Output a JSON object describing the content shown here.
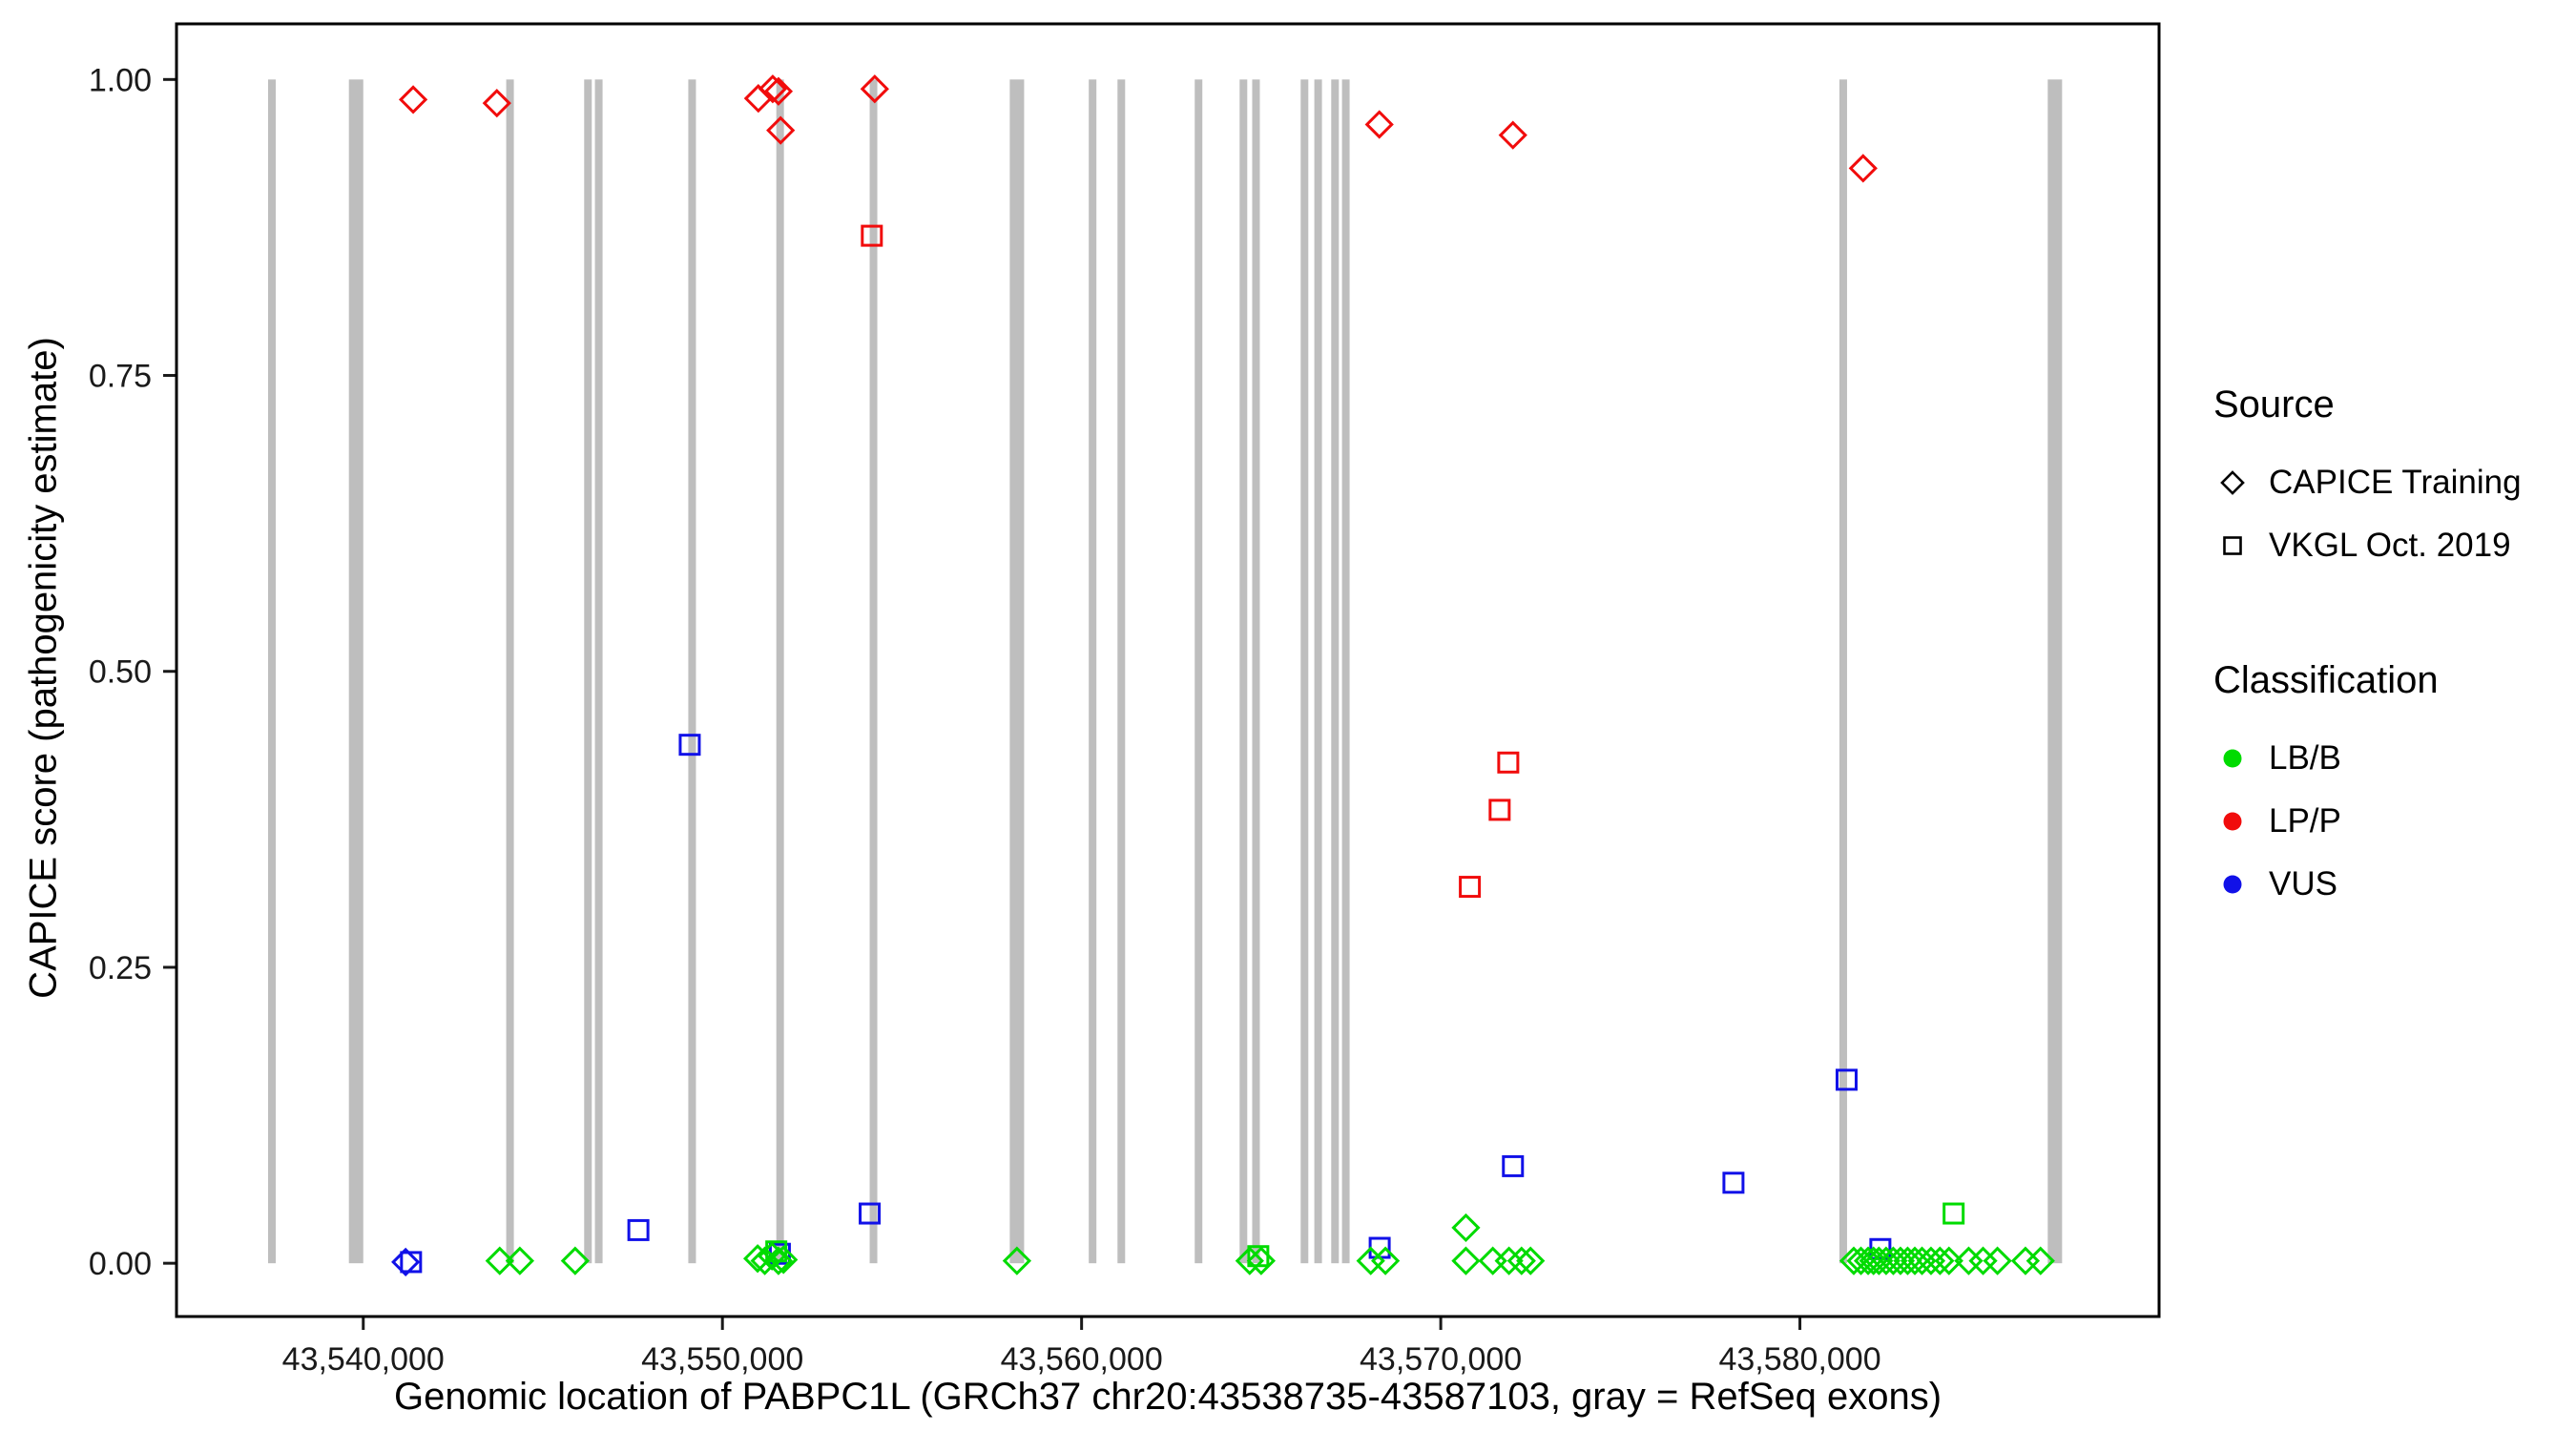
{
  "colors": {
    "exon": "#BEBEBE",
    "border": "#000000",
    "tick": "#1A1A1A",
    "axis_text": "#1A1A1A",
    "classes": {
      "LB/B": "#00DB00",
      "LP/P": "#F10C0C",
      "VUS": "#1111E8"
    }
  },
  "legend": {
    "source_title": "Source",
    "source_items": [
      {
        "label": "CAPICE Training",
        "shape": "diamond"
      },
      {
        "label": "VKGL Oct. 2019",
        "shape": "square"
      }
    ],
    "class_title": "Classification",
    "class_items": [
      {
        "label": "LB/B"
      },
      {
        "label": "LP/P"
      },
      {
        "label": "VUS"
      }
    ]
  },
  "chart_data": {
    "type": "scatter",
    "title": "",
    "xlabel": "Genomic location of PABPC1L (GRCh37 chr20:43538735-43587103, gray = RefSeq exons)",
    "ylabel": "CAPICE score (pathogenicity estimate)",
    "xlim": [
      43534800,
      43590000
    ],
    "ylim": [
      -0.045,
      1.047
    ],
    "grid": false,
    "legend_position": "right",
    "x_ticks": [
      {
        "value": 43540000,
        "label": "43,540,000"
      },
      {
        "value": 43550000,
        "label": "43,550,000"
      },
      {
        "value": 43560000,
        "label": "43,560,000"
      },
      {
        "value": 43570000,
        "label": "43,570,000"
      },
      {
        "value": 43580000,
        "label": "43,580,000"
      }
    ],
    "y_ticks": [
      {
        "value": 0.0,
        "label": "0.00"
      },
      {
        "value": 0.25,
        "label": "0.25"
      },
      {
        "value": 0.5,
        "label": "0.50"
      },
      {
        "value": 0.75,
        "label": "0.75"
      },
      {
        "value": 1.0,
        "label": "1.00"
      }
    ],
    "exons": [
      [
        43537350,
        43537550
      ],
      [
        43539600,
        43540000
      ],
      [
        43543980,
        43544150
      ],
      [
        43546150,
        43546350
      ],
      [
        43546450,
        43546650
      ],
      [
        43549050,
        43549250
      ],
      [
        43551500,
        43551700
      ],
      [
        43554100,
        43554300
      ],
      [
        43558000,
        43558400
      ],
      [
        43560200,
        43560400
      ],
      [
        43561000,
        43561200
      ],
      [
        43563150,
        43563350
      ],
      [
        43564400,
        43564560
      ],
      [
        43564750,
        43564900
      ],
      [
        43566100,
        43566260
      ],
      [
        43566480,
        43566640
      ],
      [
        43566950,
        43567110
      ],
      [
        43567250,
        43567410
      ],
      [
        43581100,
        43581300
      ],
      [
        43586900,
        43587300
      ]
    ],
    "points": [
      {
        "x": 43541390,
        "y": 0.983,
        "shape": "diamond",
        "cls": "LP/P",
        "source": "CAPICE Training"
      },
      {
        "x": 43543720,
        "y": 0.98,
        "shape": "diamond",
        "cls": "LP/P",
        "source": "CAPICE Training"
      },
      {
        "x": 43551000,
        "y": 0.984,
        "shape": "diamond",
        "cls": "LP/P",
        "source": "CAPICE Training"
      },
      {
        "x": 43551400,
        "y": 0.992,
        "shape": "diamond",
        "cls": "LP/P",
        "source": "CAPICE Training"
      },
      {
        "x": 43551560,
        "y": 0.99,
        "shape": "diamond",
        "cls": "LP/P",
        "source": "CAPICE Training"
      },
      {
        "x": 43551620,
        "y": 0.957,
        "shape": "diamond",
        "cls": "LP/P",
        "source": "CAPICE Training"
      },
      {
        "x": 43554240,
        "y": 0.992,
        "shape": "diamond",
        "cls": "LP/P",
        "source": "CAPICE Training"
      },
      {
        "x": 43568290,
        "y": 0.962,
        "shape": "diamond",
        "cls": "LP/P",
        "source": "CAPICE Training"
      },
      {
        "x": 43572010,
        "y": 0.953,
        "shape": "diamond",
        "cls": "LP/P",
        "source": "CAPICE Training"
      },
      {
        "x": 43581760,
        "y": 0.925,
        "shape": "diamond",
        "cls": "LP/P",
        "source": "CAPICE Training"
      },
      {
        "x": 43554160,
        "y": 0.868,
        "shape": "square",
        "cls": "LP/P",
        "source": "VKGL Oct. 2019"
      },
      {
        "x": 43570810,
        "y": 0.318,
        "shape": "square",
        "cls": "LP/P",
        "source": "VKGL Oct. 2019"
      },
      {
        "x": 43571640,
        "y": 0.383,
        "shape": "square",
        "cls": "LP/P",
        "source": "VKGL Oct. 2019"
      },
      {
        "x": 43571880,
        "y": 0.423,
        "shape": "square",
        "cls": "LP/P",
        "source": "VKGL Oct. 2019"
      },
      {
        "x": 43549090,
        "y": 0.438,
        "shape": "square",
        "cls": "VUS",
        "source": "VKGL Oct. 2019"
      },
      {
        "x": 43547660,
        "y": 0.028,
        "shape": "square",
        "cls": "VUS",
        "source": "VKGL Oct. 2019"
      },
      {
        "x": 43554100,
        "y": 0.042,
        "shape": "square",
        "cls": "VUS",
        "source": "VKGL Oct. 2019"
      },
      {
        "x": 43572010,
        "y": 0.082,
        "shape": "square",
        "cls": "VUS",
        "source": "VKGL Oct. 2019"
      },
      {
        "x": 43578150,
        "y": 0.068,
        "shape": "square",
        "cls": "VUS",
        "source": "VKGL Oct. 2019"
      },
      {
        "x": 43581300,
        "y": 0.155,
        "shape": "square",
        "cls": "VUS",
        "source": "VKGL Oct. 2019"
      },
      {
        "x": 43582240,
        "y": 0.012,
        "shape": "square",
        "cls": "VUS",
        "source": "VKGL Oct. 2019"
      },
      {
        "x": 43541330,
        "y": 0.001,
        "shape": "square",
        "cls": "VUS",
        "source": "VKGL Oct. 2019"
      },
      {
        "x": 43551600,
        "y": 0.008,
        "shape": "square",
        "cls": "VUS",
        "source": "VKGL Oct. 2019"
      },
      {
        "x": 43568300,
        "y": 0.013,
        "shape": "square",
        "cls": "VUS",
        "source": "VKGL Oct. 2019"
      },
      {
        "x": 43541180,
        "y": 0.001,
        "shape": "diamond",
        "cls": "VUS",
        "source": "CAPICE Training"
      },
      {
        "x": 43584280,
        "y": 0.042,
        "shape": "square",
        "cls": "LB/B",
        "source": "VKGL Oct. 2019"
      },
      {
        "x": 43564920,
        "y": 0.006,
        "shape": "square",
        "cls": "LB/B",
        "source": "VKGL Oct. 2019"
      },
      {
        "x": 43551500,
        "y": 0.01,
        "shape": "square",
        "cls": "LB/B",
        "source": "VKGL Oct. 2019"
      },
      {
        "x": 43543800,
        "y": 0.002,
        "shape": "diamond",
        "cls": "LB/B",
        "source": "CAPICE Training"
      },
      {
        "x": 43544360,
        "y": 0.002,
        "shape": "diamond",
        "cls": "LB/B",
        "source": "CAPICE Training"
      },
      {
        "x": 43545900,
        "y": 0.002,
        "shape": "diamond",
        "cls": "LB/B",
        "source": "CAPICE Training"
      },
      {
        "x": 43550980,
        "y": 0.004,
        "shape": "diamond",
        "cls": "LB/B",
        "source": "CAPICE Training"
      },
      {
        "x": 43551180,
        "y": 0.002,
        "shape": "diamond",
        "cls": "LB/B",
        "source": "CAPICE Training"
      },
      {
        "x": 43551380,
        "y": 0.006,
        "shape": "diamond",
        "cls": "LB/B",
        "source": "CAPICE Training"
      },
      {
        "x": 43551560,
        "y": 0.002,
        "shape": "diamond",
        "cls": "LB/B",
        "source": "CAPICE Training"
      },
      {
        "x": 43551700,
        "y": 0.003,
        "shape": "diamond",
        "cls": "LB/B",
        "source": "CAPICE Training"
      },
      {
        "x": 43558200,
        "y": 0.002,
        "shape": "diamond",
        "cls": "LB/B",
        "source": "CAPICE Training"
      },
      {
        "x": 43564680,
        "y": 0.002,
        "shape": "diamond",
        "cls": "LB/B",
        "source": "CAPICE Training"
      },
      {
        "x": 43565000,
        "y": 0.002,
        "shape": "diamond",
        "cls": "LB/B",
        "source": "CAPICE Training"
      },
      {
        "x": 43568050,
        "y": 0.002,
        "shape": "diamond",
        "cls": "LB/B",
        "source": "CAPICE Training"
      },
      {
        "x": 43568460,
        "y": 0.002,
        "shape": "diamond",
        "cls": "LB/B",
        "source": "CAPICE Training"
      },
      {
        "x": 43570700,
        "y": 0.03,
        "shape": "diamond",
        "cls": "LB/B",
        "source": "CAPICE Training"
      },
      {
        "x": 43570700,
        "y": 0.002,
        "shape": "diamond",
        "cls": "LB/B",
        "source": "CAPICE Training"
      },
      {
        "x": 43571450,
        "y": 0.002,
        "shape": "diamond",
        "cls": "LB/B",
        "source": "CAPICE Training"
      },
      {
        "x": 43571900,
        "y": 0.002,
        "shape": "diamond",
        "cls": "LB/B",
        "source": "CAPICE Training"
      },
      {
        "x": 43572250,
        "y": 0.002,
        "shape": "diamond",
        "cls": "LB/B",
        "source": "CAPICE Training"
      },
      {
        "x": 43572500,
        "y": 0.002,
        "shape": "diamond",
        "cls": "LB/B",
        "source": "CAPICE Training"
      },
      {
        "x": 43581500,
        "y": 0.002,
        "shape": "diamond",
        "cls": "LB/B",
        "source": "CAPICE Training"
      },
      {
        "x": 43581700,
        "y": 0.002,
        "shape": "diamond",
        "cls": "LB/B",
        "source": "CAPICE Training"
      },
      {
        "x": 43581900,
        "y": 0.002,
        "shape": "diamond",
        "cls": "LB/B",
        "source": "CAPICE Training"
      },
      {
        "x": 43582050,
        "y": 0.002,
        "shape": "diamond",
        "cls": "LB/B",
        "source": "CAPICE Training"
      },
      {
        "x": 43582200,
        "y": 0.002,
        "shape": "diamond",
        "cls": "LB/B",
        "source": "CAPICE Training"
      },
      {
        "x": 43582400,
        "y": 0.002,
        "shape": "diamond",
        "cls": "LB/B",
        "source": "CAPICE Training"
      },
      {
        "x": 43582600,
        "y": 0.002,
        "shape": "diamond",
        "cls": "LB/B",
        "source": "CAPICE Training"
      },
      {
        "x": 43582800,
        "y": 0.002,
        "shape": "diamond",
        "cls": "LB/B",
        "source": "CAPICE Training"
      },
      {
        "x": 43583000,
        "y": 0.002,
        "shape": "diamond",
        "cls": "LB/B",
        "source": "CAPICE Training"
      },
      {
        "x": 43583200,
        "y": 0.002,
        "shape": "diamond",
        "cls": "LB/B",
        "source": "CAPICE Training"
      },
      {
        "x": 43583400,
        "y": 0.002,
        "shape": "diamond",
        "cls": "LB/B",
        "source": "CAPICE Training"
      },
      {
        "x": 43583650,
        "y": 0.002,
        "shape": "diamond",
        "cls": "LB/B",
        "source": "CAPICE Training"
      },
      {
        "x": 43583900,
        "y": 0.002,
        "shape": "diamond",
        "cls": "LB/B",
        "source": "CAPICE Training"
      },
      {
        "x": 43584150,
        "y": 0.002,
        "shape": "diamond",
        "cls": "LB/B",
        "source": "CAPICE Training"
      },
      {
        "x": 43584700,
        "y": 0.002,
        "shape": "diamond",
        "cls": "LB/B",
        "source": "CAPICE Training"
      },
      {
        "x": 43585100,
        "y": 0.002,
        "shape": "diamond",
        "cls": "LB/B",
        "source": "CAPICE Training"
      },
      {
        "x": 43585500,
        "y": 0.002,
        "shape": "diamond",
        "cls": "LB/B",
        "source": "CAPICE Training"
      },
      {
        "x": 43586280,
        "y": 0.002,
        "shape": "diamond",
        "cls": "LB/B",
        "source": "CAPICE Training"
      },
      {
        "x": 43586700,
        "y": 0.002,
        "shape": "diamond",
        "cls": "LB/B",
        "source": "CAPICE Training"
      }
    ]
  }
}
